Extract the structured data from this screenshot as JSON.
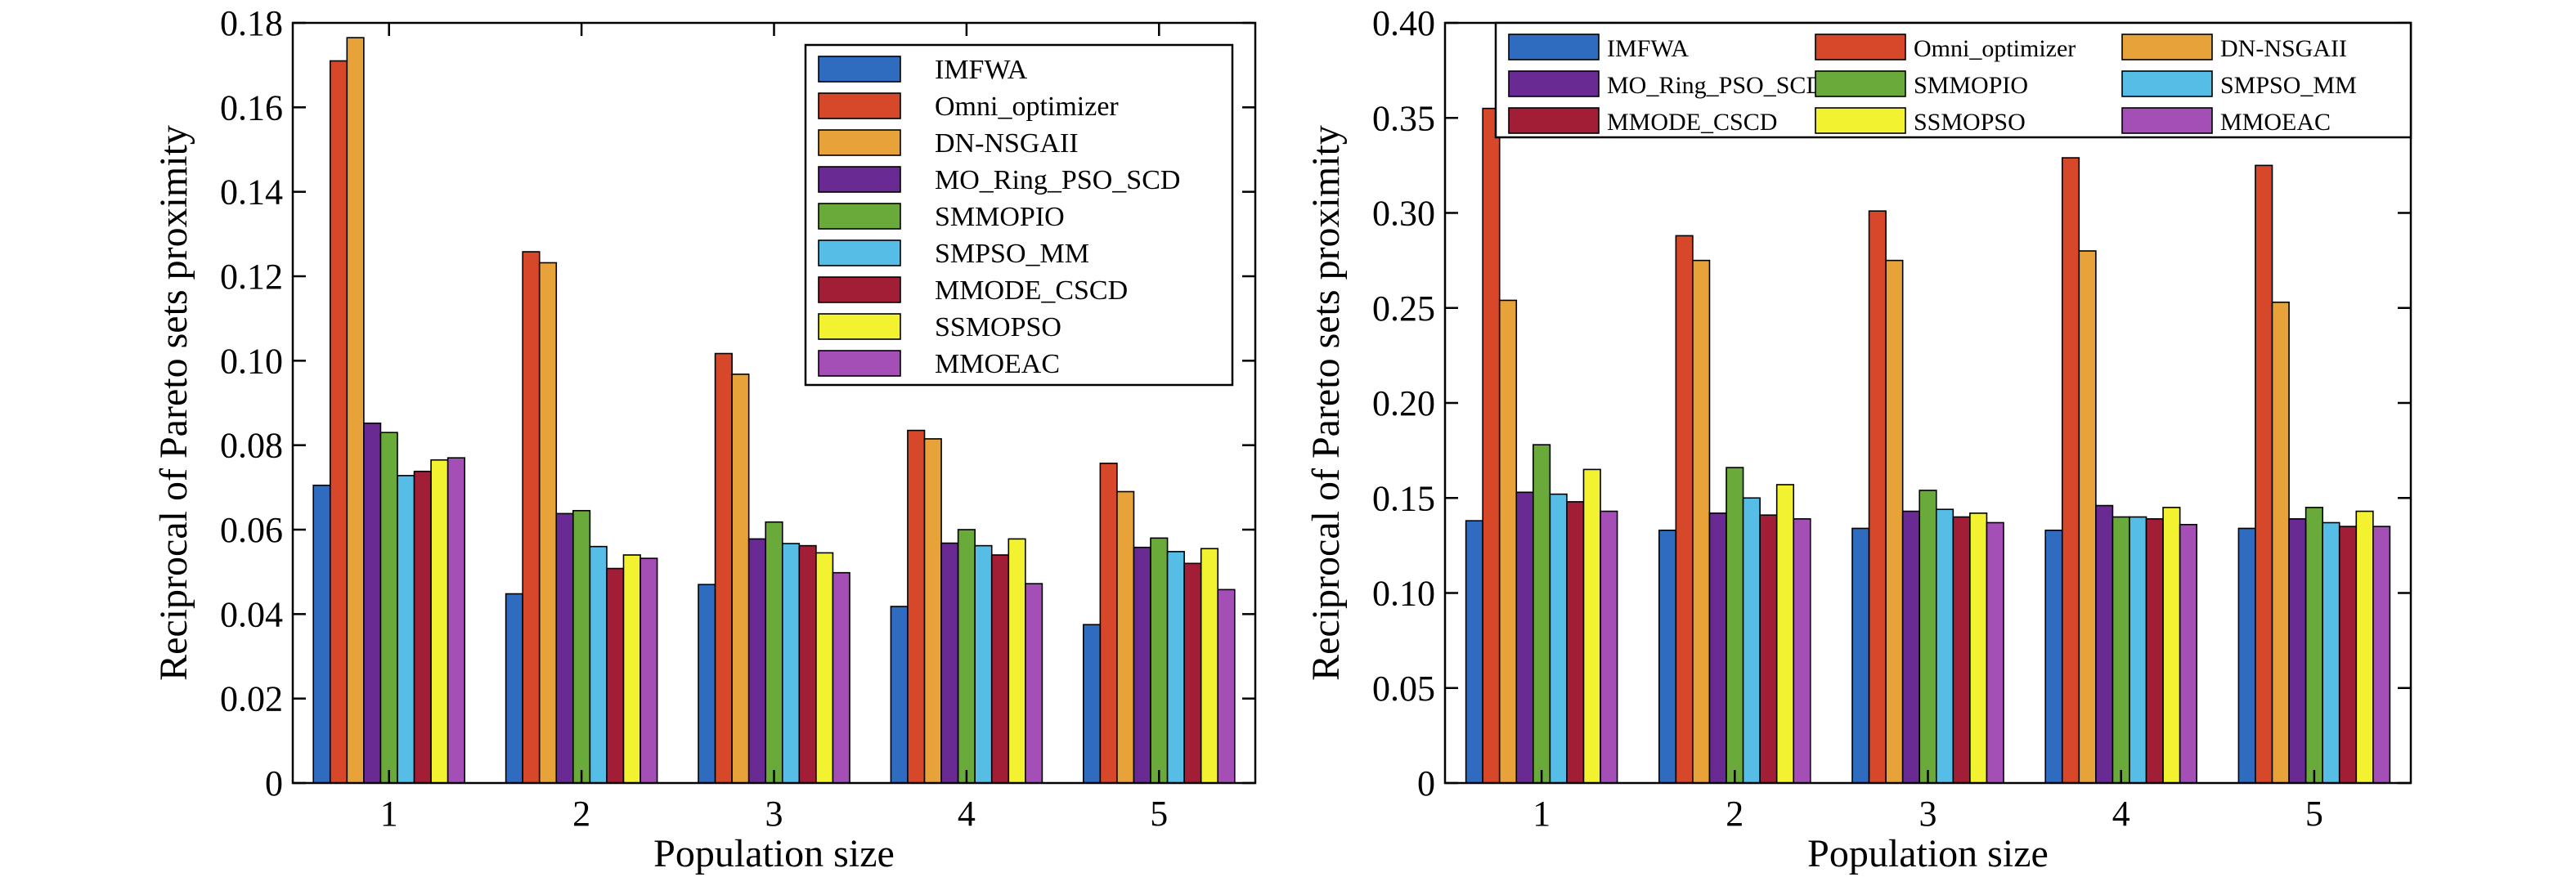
{
  "colors": {
    "IMFWA": "#2f6bbf",
    "Omni_optimizer": "#d7472a",
    "DN-NSGAII": "#e8a23a",
    "MO_Ring_PSO_SCD": "#6a2a94",
    "SMMOPIO": "#6aaa3a",
    "SMPSO_MM": "#56bde6",
    "MMODE_CSCD": "#a21e36",
    "SSMOPSO": "#f2f230",
    "MMOEAC": "#a34fb6"
  },
  "chart_data": [
    {
      "type": "bar",
      "xlabel": "Population size",
      "ylabel": "Reciprocal of Pareto sets proximity",
      "ylim": [
        0,
        0.18
      ],
      "yticks": [
        "0",
        "0.02",
        "0.04",
        "0.06",
        "0.08",
        "0.10",
        "0.12",
        "0.14",
        "0.16",
        "0.18"
      ],
      "categories": [
        "1",
        "2",
        "3",
        "4",
        "5"
      ],
      "legend_position": "top-right",
      "legend_columns": 1,
      "series": [
        {
          "name": "IMFWA",
          "values": [
            0.0705,
            0.0448,
            0.047,
            0.0418,
            0.0375
          ]
        },
        {
          "name": "Omni_optimizer",
          "values": [
            0.171,
            0.1258,
            0.1017,
            0.0835,
            0.0757
          ]
        },
        {
          "name": "DN-NSGAII",
          "values": [
            0.1765,
            0.1232,
            0.0968,
            0.0815,
            0.069
          ]
        },
        {
          "name": "MO_Ring_PSO_SCD",
          "values": [
            0.0852,
            0.0638,
            0.0578,
            0.0568,
            0.0558
          ]
        },
        {
          "name": "SMMOPIO",
          "values": [
            0.083,
            0.0645,
            0.0618,
            0.06,
            0.058
          ]
        },
        {
          "name": "SMPSO_MM",
          "values": [
            0.0728,
            0.056,
            0.0567,
            0.0562,
            0.0548
          ]
        },
        {
          "name": "MMODE_CSCD",
          "values": [
            0.0738,
            0.0508,
            0.0562,
            0.054,
            0.052
          ]
        },
        {
          "name": "SSMOPSO",
          "values": [
            0.0765,
            0.054,
            0.0545,
            0.0578,
            0.0555
          ]
        },
        {
          "name": "MMOEAC",
          "values": [
            0.077,
            0.0532,
            0.0498,
            0.0472,
            0.0458
          ]
        }
      ]
    },
    {
      "type": "bar",
      "xlabel": "Population size",
      "ylabel": "Reciprocal of Pareto sets proximity",
      "ylim": [
        0,
        0.4
      ],
      "yticks": [
        "0",
        "0.05",
        "0.10",
        "0.15",
        "0.20",
        "0.25",
        "0.30",
        "0.35",
        "0.40"
      ],
      "categories": [
        "1",
        "2",
        "3",
        "4",
        "5"
      ],
      "legend_position": "top",
      "legend_columns": 3,
      "series": [
        {
          "name": "IMFWA",
          "values": [
            0.138,
            0.133,
            0.134,
            0.133,
            0.134
          ]
        },
        {
          "name": "Omni_optimizer",
          "values": [
            0.355,
            0.288,
            0.301,
            0.329,
            0.325
          ]
        },
        {
          "name": "DN-NSGAII",
          "values": [
            0.254,
            0.275,
            0.275,
            0.28,
            0.253
          ]
        },
        {
          "name": "MO_Ring_PSO_SCD",
          "values": [
            0.153,
            0.142,
            0.143,
            0.146,
            0.139
          ]
        },
        {
          "name": "SMMOPIO",
          "values": [
            0.178,
            0.166,
            0.154,
            0.14,
            0.145
          ]
        },
        {
          "name": "SMPSO_MM",
          "values": [
            0.152,
            0.15,
            0.144,
            0.14,
            0.137
          ]
        },
        {
          "name": "MMODE_CSCD",
          "values": [
            0.148,
            0.141,
            0.14,
            0.139,
            0.135
          ]
        },
        {
          "name": "SSMOPSO",
          "values": [
            0.165,
            0.157,
            0.142,
            0.145,
            0.143
          ]
        },
        {
          "name": "MMOEAC",
          "values": [
            0.143,
            0.139,
            0.137,
            0.136,
            0.135
          ]
        }
      ]
    }
  ]
}
